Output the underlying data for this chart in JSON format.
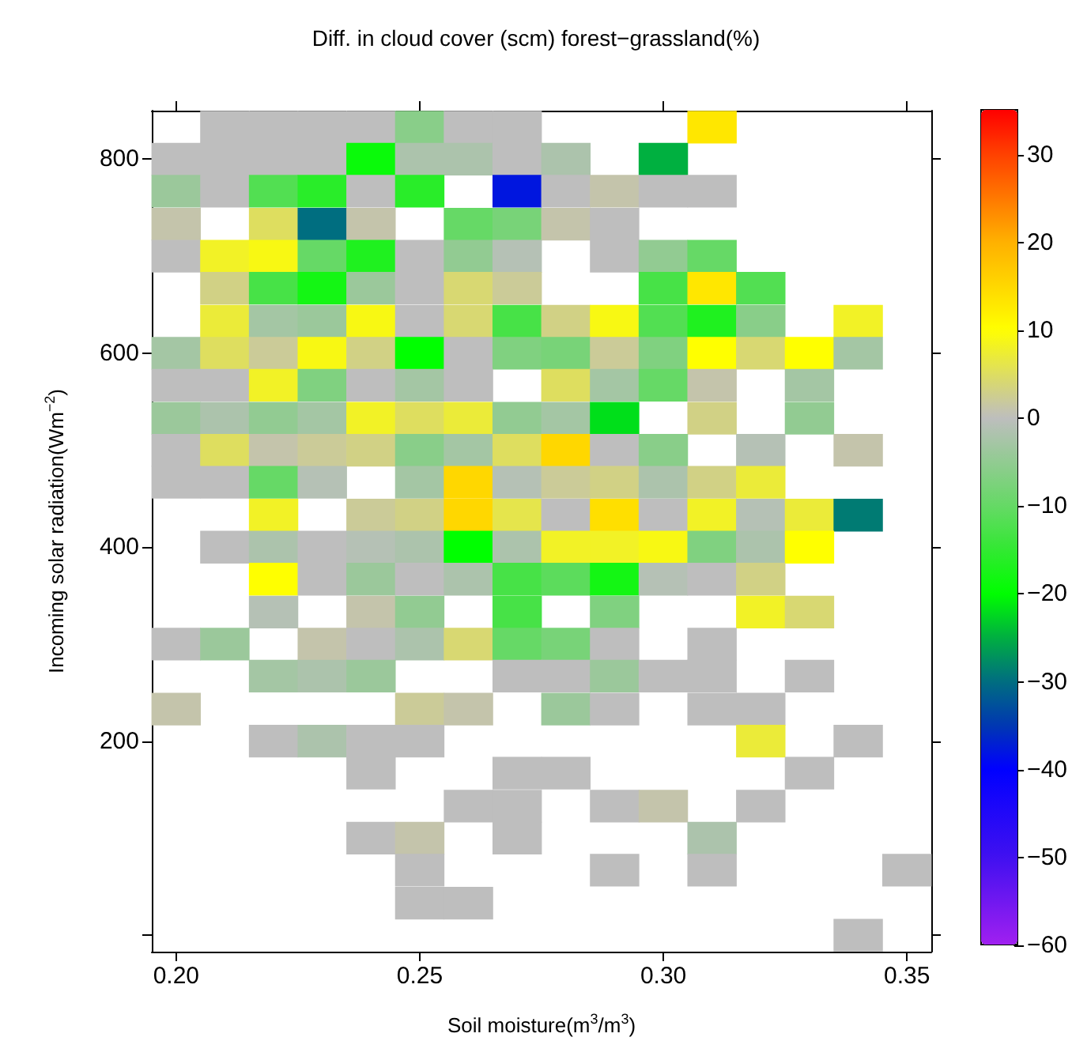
{
  "chart_data": {
    "type": "scatter",
    "marker": "square",
    "title": "Diff. in cloud cover (scm) forest−grassland(%)",
    "xlabel": "Soil moisture(m$^{3}$/m$^{3}$)",
    "ylabel": "Incoming solar radiation(Wm$^{−2}$)",
    "xlim": [
      0.195,
      0.355
    ],
    "xticks": [
      {
        "value": 0.2,
        "label": "0.20"
      },
      {
        "value": 0.25,
        "label": "0.25"
      },
      {
        "value": 0.3,
        "label": "0.30"
      },
      {
        "value": 0.35,
        "label": "0.35"
      }
    ],
    "ylim": [
      -17,
      850
    ],
    "yticks": [
      {
        "value": 0,
        "label": null
      },
      200,
      400,
      600,
      800
    ],
    "clim": [
      -60,
      35
    ],
    "cticks": [
      {
        "value": -60,
        "label": "−60"
      },
      {
        "value": -50,
        "label": "−50"
      },
      {
        "value": -40,
        "label": "−40"
      },
      {
        "value": -30,
        "label": "−30"
      },
      {
        "value": -20,
        "label": "−20"
      },
      {
        "value": -10,
        "label": "−10"
      },
      0,
      10,
      20,
      30
    ],
    "x": [
      0.21,
      0.22,
      0.23,
      0.24,
      0.25,
      0.26,
      0.27,
      0.31,
      0.2,
      0.21,
      0.22,
      0.23,
      0.24,
      0.25,
      0.26,
      0.27,
      0.28,
      0.3,
      0.2,
      0.21,
      0.22,
      0.23,
      0.24,
      0.25,
      0.27,
      0.28,
      0.29,
      0.3,
      0.31,
      0.2,
      0.22,
      0.23,
      0.24,
      0.26,
      0.27,
      0.28,
      0.29,
      0.2,
      0.21,
      0.22,
      0.23,
      0.24,
      0.25,
      0.26,
      0.27,
      0.29,
      0.3,
      0.31,
      0.21,
      0.22,
      0.23,
      0.24,
      0.25,
      0.26,
      0.27,
      0.3,
      0.31,
      0.32,
      0.21,
      0.22,
      0.23,
      0.24,
      0.25,
      0.26,
      0.27,
      0.28,
      0.29,
      0.3,
      0.31,
      0.32,
      0.34,
      0.2,
      0.21,
      0.22,
      0.23,
      0.24,
      0.25,
      0.26,
      0.27,
      0.28,
      0.29,
      0.3,
      0.31,
      0.32,
      0.33,
      0.34,
      0.2,
      0.21,
      0.22,
      0.23,
      0.24,
      0.25,
      0.26,
      0.28,
      0.29,
      0.3,
      0.31,
      0.33,
      0.2,
      0.21,
      0.22,
      0.23,
      0.24,
      0.25,
      0.26,
      0.27,
      0.28,
      0.29,
      0.31,
      0.33,
      0.2,
      0.21,
      0.22,
      0.23,
      0.24,
      0.25,
      0.26,
      0.27,
      0.28,
      0.29,
      0.3,
      0.32,
      0.34,
      0.2,
      0.21,
      0.22,
      0.23,
      0.25,
      0.26,
      0.27,
      0.28,
      0.29,
      0.3,
      0.31,
      0.32,
      0.22,
      0.24,
      0.25,
      0.26,
      0.27,
      0.28,
      0.29,
      0.3,
      0.31,
      0.32,
      0.33,
      0.34,
      0.21,
      0.22,
      0.23,
      0.24,
      0.25,
      0.26,
      0.27,
      0.28,
      0.29,
      0.3,
      0.31,
      0.32,
      0.33,
      0.22,
      0.23,
      0.24,
      0.25,
      0.26,
      0.27,
      0.28,
      0.29,
      0.3,
      0.31,
      0.32,
      0.22,
      0.24,
      0.25,
      0.27,
      0.29,
      0.32,
      0.33,
      0.2,
      0.21,
      0.23,
      0.24,
      0.25,
      0.26,
      0.27,
      0.28,
      0.29,
      0.31,
      0.22,
      0.23,
      0.24,
      0.27,
      0.28,
      0.29,
      0.3,
      0.31,
      0.33,
      0.2,
      0.25,
      0.26,
      0.28,
      0.29,
      0.31,
      0.32,
      0.22,
      0.23,
      0.24,
      0.25,
      0.32,
      0.34,
      0.24,
      0.27,
      0.28,
      0.33,
      0.26,
      0.27,
      0.29,
      0.3,
      0.32,
      0.24,
      0.25,
      0.27,
      0.31,
      0.25,
      0.29,
      0.31,
      0.35,
      0.25,
      0.26,
      0.34
    ],
    "values": [
      833,
      833,
      833,
      833,
      833,
      833,
      833,
      833,
      800,
      800,
      800,
      800,
      800,
      800,
      800,
      800,
      800,
      800,
      767,
      767,
      767,
      767,
      767,
      767,
      767,
      767,
      767,
      767,
      767,
      733,
      733,
      733,
      733,
      733,
      733,
      733,
      733,
      700,
      700,
      700,
      700,
      700,
      700,
      700,
      700,
      700,
      700,
      700,
      667,
      667,
      667,
      667,
      667,
      667,
      667,
      667,
      667,
      667,
      633,
      633,
      633,
      633,
      633,
      633,
      633,
      633,
      633,
      633,
      633,
      633,
      633,
      600,
      600,
      600,
      600,
      600,
      600,
      600,
      600,
      600,
      600,
      600,
      600,
      600,
      600,
      600,
      567,
      567,
      567,
      567,
      567,
      567,
      567,
      567,
      567,
      567,
      567,
      567,
      533,
      533,
      533,
      533,
      533,
      533,
      533,
      533,
      533,
      533,
      533,
      533,
      500,
      500,
      500,
      500,
      500,
      500,
      500,
      500,
      500,
      500,
      500,
      500,
      500,
      467,
      467,
      467,
      467,
      467,
      467,
      467,
      467,
      467,
      467,
      467,
      467,
      433,
      433,
      433,
      433,
      433,
      433,
      433,
      433,
      433,
      433,
      433,
      433,
      400,
      400,
      400,
      400,
      400,
      400,
      400,
      400,
      400,
      400,
      400,
      400,
      400,
      367,
      367,
      367,
      367,
      367,
      367,
      367,
      367,
      367,
      367,
      367,
      333,
      333,
      333,
      333,
      333,
      333,
      333,
      300,
      300,
      300,
      300,
      300,
      300,
      300,
      300,
      300,
      300,
      267,
      267,
      267,
      267,
      267,
      267,
      267,
      267,
      267,
      233,
      233,
      233,
      233,
      233,
      233,
      233,
      200,
      200,
      200,
      200,
      200,
      200,
      167,
      167,
      167,
      167,
      133,
      133,
      133,
      133,
      133,
      100,
      100,
      100,
      100,
      67,
      67,
      67,
      67,
      33,
      33,
      0
    ],
    "cvalues": [
      0,
      0,
      0,
      0,
      -6,
      0,
      0,
      13,
      0,
      0,
      0,
      0,
      -19,
      -2,
      -2,
      0,
      -2,
      -25,
      -4,
      0,
      -12,
      -16,
      0,
      -16,
      -38,
      0,
      1,
      0,
      0,
      1,
      5,
      -30,
      1,
      -10,
      -8,
      1,
      0,
      0,
      8,
      9,
      -10,
      -17,
      0,
      -5,
      -1,
      0,
      -5,
      -10,
      3,
      -13,
      -18,
      -4,
      0,
      4,
      2,
      -13,
      13,
      -12,
      7,
      -3,
      -4,
      9,
      0,
      4,
      -13,
      3,
      9,
      -12,
      -17,
      -6,
      8,
      -3,
      5,
      2,
      9,
      3,
      -20,
      0,
      -7,
      -8,
      2,
      -7,
      10,
      4,
      10,
      -3,
      0,
      0,
      8,
      -7,
      0,
      -3,
      0,
      5,
      -3,
      -10,
      1,
      -3,
      -4,
      -2,
      -5,
      -3,
      8,
      5,
      7,
      -5,
      -3,
      -22,
      3,
      -5,
      0,
      5,
      1,
      2,
      3,
      -6,
      -3,
      5,
      15,
      0,
      -6,
      -1,
      1,
      0,
      0,
      -10,
      -1,
      -3,
      15,
      -1,
      2,
      3,
      -2,
      3,
      7,
      8,
      2,
      3,
      15,
      6,
      0,
      14,
      0,
      8,
      -1,
      7,
      -29,
      0,
      -2,
      0,
      -1,
      -2,
      -20,
      -2,
      8,
      8,
      9,
      -7,
      -2,
      10,
      10,
      0,
      -4,
      0,
      -2,
      -13,
      -11,
      -18,
      -1,
      0,
      3,
      -1,
      1,
      -5,
      -13,
      -7,
      8,
      4,
      0,
      -4,
      1,
      0,
      -2,
      4,
      -10,
      -8,
      0,
      0,
      -3,
      -2,
      -4,
      0,
      0,
      -4,
      0,
      0,
      0,
      1,
      2,
      1,
      -4,
      0,
      0,
      0,
      0,
      -2,
      0,
      0,
      7,
      0,
      0,
      0,
      0,
      0,
      0,
      0,
      0,
      1,
      0,
      0,
      1,
      0,
      -2,
      0,
      0,
      0,
      0,
      0,
      0,
      0
    ]
  }
}
